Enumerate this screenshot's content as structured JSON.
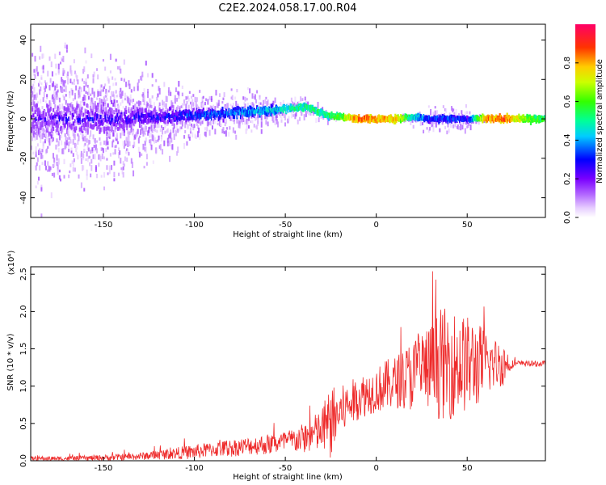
{
  "title": "C2E2.2024.058.17.00.R04",
  "colors": {
    "signal": "#ee2a2a",
    "axis": "#000000"
  },
  "chart_data": [
    {
      "type": "heatmap",
      "xlabel": "Height of straight line (km)",
      "ylabel": "Frequency (Hz)",
      "xlim": [
        -190,
        93
      ],
      "ylim": [
        -50,
        48
      ],
      "xticks": [
        -150,
        -100,
        -50,
        0,
        50
      ],
      "yticks": [
        40,
        20,
        0,
        -20,
        -40
      ],
      "colorbar": {
        "label": "Normalized spectral amplitude",
        "range": [
          0.0,
          1.0
        ],
        "ticks": [
          "0.0",
          "0.2",
          "0.4",
          "0.6",
          "0.8"
        ]
      },
      "ridge": {
        "x": [
          -190,
          -150,
          -120,
          -100,
          -80,
          -60,
          -50,
          -40,
          -35,
          -28,
          -20,
          -10,
          0,
          10,
          20,
          30,
          40,
          50,
          60,
          70,
          80,
          93
        ],
        "frequency": [
          0,
          0,
          1,
          2,
          3,
          4,
          5,
          6,
          5,
          2,
          1,
          0,
          0,
          0,
          1,
          0,
          0,
          0,
          0,
          0,
          0,
          0
        ],
        "amplitude": [
          0.3,
          0.35,
          0.35,
          0.4,
          0.45,
          0.5,
          0.55,
          0.6,
          0.6,
          0.6,
          0.7,
          0.95,
          0.9,
          0.85,
          0.55,
          0.4,
          0.4,
          0.35,
          0.9,
          0.95,
          0.75,
          0.6
        ],
        "spread": [
          45,
          40,
          25,
          18,
          15,
          12,
          10,
          8,
          7,
          4,
          2,
          1,
          1,
          1,
          6,
          8,
          8,
          8,
          2,
          1,
          1,
          2
        ]
      }
    },
    {
      "type": "line",
      "xlabel": "Height of straight line (km)",
      "ylabel": "SNR (10 * v/v)",
      "scale_label": "(x10⁴)",
      "xlim": [
        -190,
        93
      ],
      "ylim": [
        0,
        2.6
      ],
      "xticks": [
        -150,
        -100,
        -50,
        0,
        50
      ],
      "yticks": [
        "0.0",
        "0.5",
        "1.0",
        "1.5",
        "2.0",
        "2.5"
      ],
      "series": [
        {
          "x": [
            -190,
            -170,
            -150,
            -130,
            -110,
            -100,
            -90,
            -80,
            -70,
            -60,
            -50,
            -40,
            -30,
            -25,
            -20,
            -15,
            -10,
            -5,
            0,
            5,
            10,
            15,
            20,
            25,
            30,
            35,
            40,
            45,
            50,
            55,
            60,
            65,
            70,
            75,
            80,
            93
          ],
          "baseline": [
            0.03,
            0.03,
            0.04,
            0.06,
            0.1,
            0.12,
            0.15,
            0.17,
            0.2,
            0.22,
            0.25,
            0.3,
            0.4,
            0.5,
            0.65,
            0.75,
            0.85,
            0.9,
            0.95,
            1.0,
            1.05,
            1.1,
            1.15,
            1.2,
            1.25,
            1.3,
            1.3,
            1.3,
            1.3,
            1.3,
            1.3,
            1.3,
            1.3,
            1.3,
            1.3,
            1.3
          ],
          "noise": [
            0.03,
            0.03,
            0.04,
            0.05,
            0.08,
            0.1,
            0.1,
            0.12,
            0.12,
            0.14,
            0.15,
            0.2,
            0.3,
            0.5,
            0.35,
            0.3,
            0.3,
            0.3,
            0.3,
            0.35,
            0.35,
            0.4,
            0.5,
            0.55,
            0.6,
            0.75,
            0.75,
            0.7,
            0.65,
            0.6,
            0.45,
            0.35,
            0.3,
            0.05,
            0.04,
            0.04
          ]
        }
      ]
    }
  ]
}
